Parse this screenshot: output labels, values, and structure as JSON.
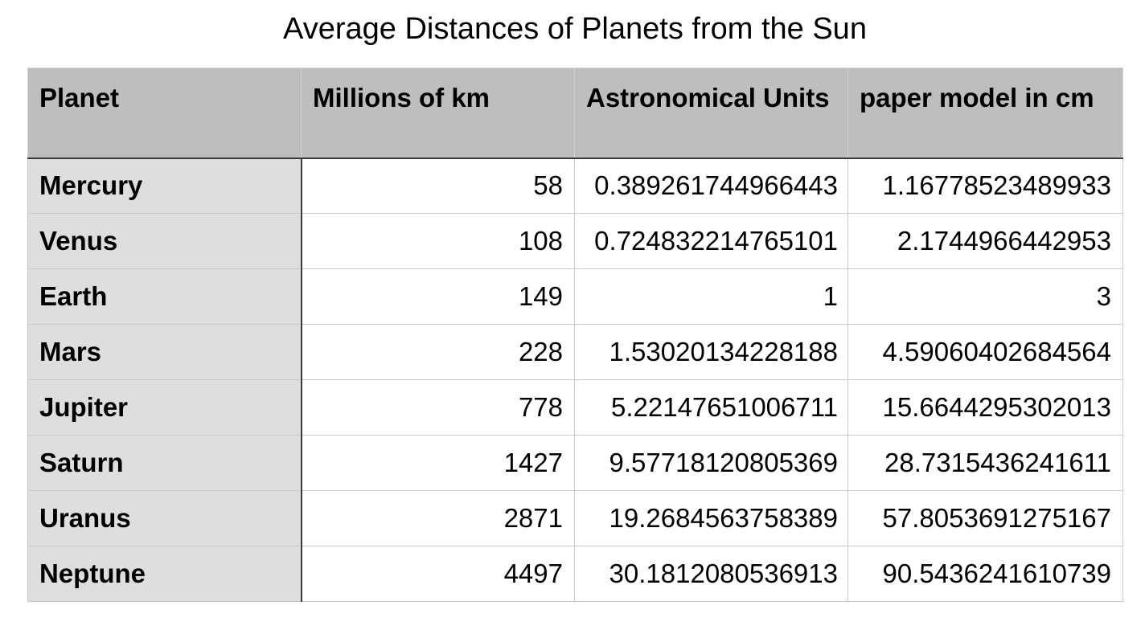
{
  "chart_data": {
    "type": "table",
    "title": "Average Distances of Planets from the Sun",
    "columns": [
      "Planet",
      "Millions of km",
      "Astronomical Units",
      "paper model in cm"
    ],
    "rows": [
      [
        "Mercury",
        "58",
        "0.389261744966443",
        "1.16778523489933"
      ],
      [
        "Venus",
        "108",
        "0.724832214765101",
        "2.1744966442953"
      ],
      [
        "Earth",
        "149",
        "1",
        "3"
      ],
      [
        "Mars",
        "228",
        "1.53020134228188",
        "4.59060402684564"
      ],
      [
        "Jupiter",
        "778",
        "5.22147651006711",
        "15.6644295302013"
      ],
      [
        "Saturn",
        "1427",
        "9.57718120805369",
        "28.7315436241611"
      ],
      [
        "Uranus",
        "2871",
        "19.2684563758389",
        "57.8053691275167"
      ],
      [
        "Neptune",
        "4497",
        "30.1812080536913",
        "90.5436241610739"
      ]
    ]
  },
  "colors": {
    "header_background": "#bdbebd",
    "row_header_background": "#dedede",
    "cell_background": "#ffffff",
    "grid_line": "#c9c9c9"
  }
}
